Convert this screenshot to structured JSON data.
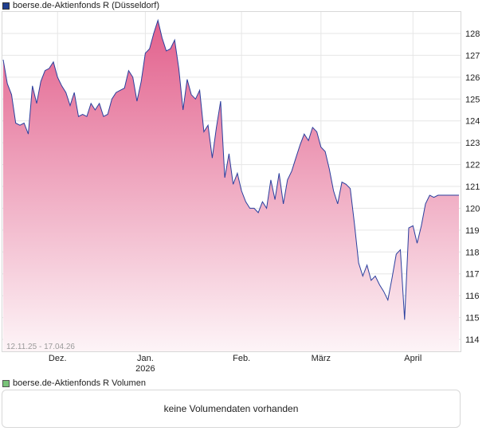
{
  "legend_price": {
    "label": "boerse.de-Aktienfonds R (Düsseldorf)",
    "color": "#1f3f8f"
  },
  "legend_volume": {
    "label": "boerse.de-Aktienfonds R Volumen",
    "color": "#7ac47a"
  },
  "date_range": "12.11.25 - 17.04.26",
  "volume_message": "keine Volumendaten vorhanden",
  "colors": {
    "line": "#2a3f9e",
    "fill_top": "#e2608c",
    "fill_bottom": "#fdf4f7",
    "grid": "#e6e6e6"
  },
  "chart_data": {
    "type": "area",
    "title": "",
    "xlabel": "",
    "ylabel": "",
    "ylim": [
      113.5,
      128.7
    ],
    "yticks": [
      114,
      115,
      116,
      117,
      118,
      119,
      120,
      121,
      122,
      123,
      124,
      125,
      126,
      127,
      128
    ],
    "xticks": [
      {
        "label": "Dez.",
        "sublabel": "",
        "index": 13
      },
      {
        "label": "Jan.",
        "sublabel": "2026",
        "index": 34
      },
      {
        "label": "Feb.",
        "sublabel": "",
        "index": 57
      },
      {
        "label": "März",
        "sublabel": "",
        "index": 76
      },
      {
        "label": "April",
        "sublabel": "",
        "index": 98
      }
    ],
    "x_count": 110,
    "series": [
      {
        "values": [
          126.8,
          125.7,
          125.2,
          123.9,
          123.8,
          123.9,
          123.4,
          125.6,
          124.8,
          125.8,
          126.3,
          126.4,
          126.7,
          126.0,
          125.6,
          125.3,
          124.7,
          125.3,
          124.2,
          124.3,
          124.2,
          124.8,
          124.5,
          124.8,
          124.2,
          124.3,
          125.0,
          125.3,
          125.4,
          125.5,
          126.3,
          126.0,
          124.9,
          125.8,
          127.1,
          127.3,
          128.0,
          128.6,
          127.8,
          127.2,
          127.3,
          127.7,
          126.4,
          124.5,
          125.9,
          125.2,
          125.0,
          125.4,
          123.5,
          123.8,
          122.3,
          123.7,
          124.9,
          121.4,
          122.5,
          121.1,
          121.6,
          120.8,
          120.3,
          120.0,
          120.0,
          119.8,
          120.3,
          120.0,
          121.3,
          120.4,
          121.6,
          120.2,
          121.3,
          121.7,
          122.3,
          122.9,
          123.4,
          123.1,
          123.7,
          123.5,
          122.8,
          122.6,
          121.8,
          120.8,
          120.2,
          121.2,
          121.1,
          120.9,
          119.3,
          117.5,
          116.9,
          117.4,
          116.7,
          116.9,
          116.5,
          116.2,
          115.8,
          116.8,
          117.9,
          118.1,
          114.9,
          119.1,
          119.2,
          118.4,
          119.2,
          120.2,
          120.6,
          120.5,
          120.6,
          120.6,
          120.6,
          120.6,
          120.6,
          120.6
        ]
      }
    ]
  }
}
